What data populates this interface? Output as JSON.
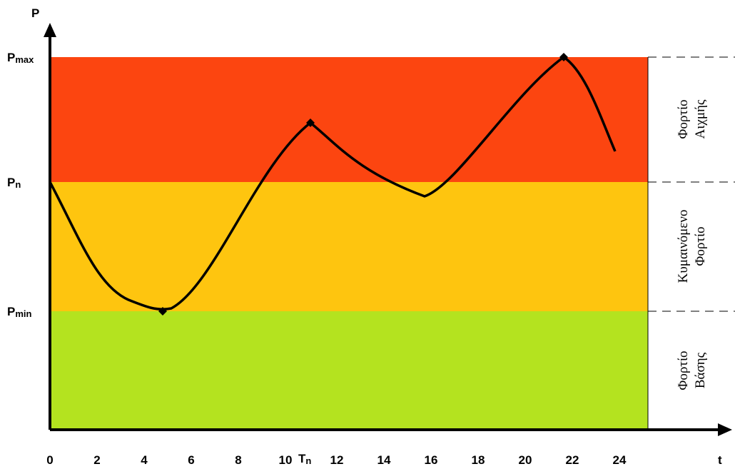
{
  "y_axis": {
    "label": "P",
    "levels": [
      {
        "main": "P",
        "sub": "max"
      },
      {
        "main": "P",
        "sub": "n"
      },
      {
        "main": "P",
        "sub": "min"
      }
    ]
  },
  "x_axis": {
    "label": "t",
    "ticks": [
      "0",
      "2",
      "4",
      "6",
      "8",
      "10",
      "12",
      "14",
      "16",
      "18",
      "20",
      "22",
      "24"
    ],
    "marker": {
      "main": "T",
      "sub": "n"
    }
  },
  "zones": [
    {
      "lines": [
        "Φορτίο",
        "Αιχμής"
      ]
    },
    {
      "lines": [
        "Κυμαινόμενο",
        "Φορτίο"
      ]
    },
    {
      "lines": [
        "Φορτίο",
        "Βάσης"
      ]
    }
  ]
}
